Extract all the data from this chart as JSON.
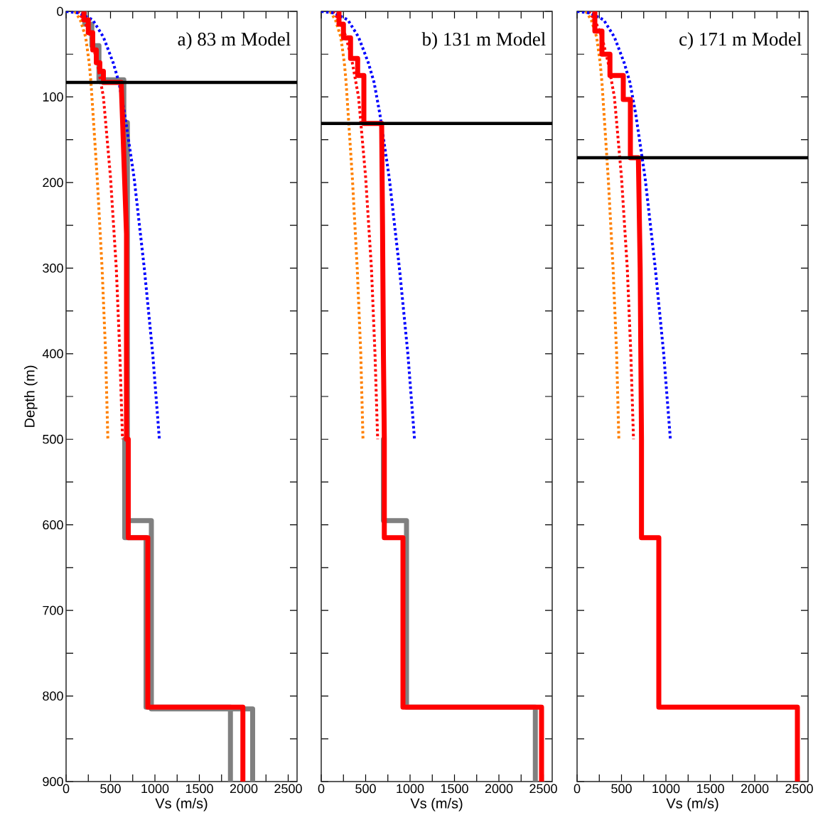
{
  "chart_data": [
    {
      "type": "line",
      "title": "a) 83 m Model",
      "xlabel": "Vs (m/s)",
      "ylabel": "Depth (m)",
      "xlim": [
        0,
        2600
      ],
      "ylim": [
        900,
        0
      ],
      "xticks": [
        0,
        {
          "value": 250,
          "label": null
        },
        500,
        {
          "value": 750,
          "label": null
        },
        1000,
        {
          "value": 1250,
          "label": null
        },
        1500,
        {
          "value": 1750,
          "label": null
        },
        2000,
        {
          "value": 2250,
          "label": null
        },
        2500
      ],
      "yticks": [
        0,
        {
          "value": 50,
          "label": null
        },
        100,
        {
          "value": 150,
          "label": null
        },
        200,
        {
          "value": 250,
          "label": null
        },
        300,
        {
          "value": 350,
          "label": null
        },
        400,
        {
          "value": 450,
          "label": null
        },
        500,
        {
          "value": 550,
          "label": null
        },
        600,
        {
          "value": 650,
          "label": null
        },
        700,
        {
          "value": 750,
          "label": null
        },
        800,
        {
          "value": 850,
          "label": null
        },
        900
      ],
      "series": [
        {
          "color": "#808080",
          "line_style": "solid",
          "x": [
            210,
            210,
            290,
            290,
            370,
            370,
            650,
            650,
            690,
            690,
            960,
            960,
            2100,
            2100
          ],
          "values": [
            0,
            15,
            15,
            40,
            40,
            80,
            80,
            130,
            130,
            595,
            595,
            815,
            815,
            900
          ]
        },
        {
          "color": "#808080",
          "line_style": "solid",
          "x": [
            660,
            660,
            900,
            900,
            1850,
            1850
          ],
          "values": [
            500,
            615,
            615,
            813,
            813,
            900
          ]
        },
        {
          "color": "#ff8000",
          "line_style": "dotted",
          "x": [
            100,
            160,
            220,
            260,
            280,
            350,
            405,
            445,
            470
          ],
          "values": [
            0,
            10,
            30,
            60,
            83,
            194,
            300,
            400,
            500
          ]
        },
        {
          "color": "#ff0000",
          "line_style": "dotted",
          "x": [
            130,
            200,
            280,
            350,
            420,
            500,
            565,
            605,
            635
          ],
          "values": [
            0,
            10,
            30,
            60,
            100,
            194,
            300,
            400,
            500
          ]
        },
        {
          "color": "#0000ff",
          "line_style": "dotted",
          "x": [
            0,
            150,
            300,
            420,
            530,
            595,
            660,
            765,
            880,
            975,
            1050
          ],
          "values": [
            0,
            2,
            10,
            30,
            60,
            83,
            120,
            194,
            300,
            400,
            500
          ]
        },
        {
          "color": "#ff0000",
          "line_style": "solid",
          "x": [
            200,
            200,
            250,
            250,
            300,
            300,
            340,
            340,
            380,
            380,
            420,
            420,
            620,
            640,
            660,
            680,
            680,
            700,
            700,
            920,
            920,
            1990,
            1990
          ],
          "values": [
            0,
            10,
            10,
            25,
            25,
            45,
            45,
            60,
            60,
            70,
            70,
            83,
            83,
            140,
            200,
            260,
            500,
            500,
            615,
            615,
            813,
            813,
            900
          ]
        }
      ],
      "ref_lines": [
        {
          "axis": "y",
          "value": 83,
          "color": "#000000"
        }
      ]
    },
    {
      "type": "line",
      "title": "b) 131 m Model",
      "xlabel": "Vs (m/s)",
      "xlim": [
        0,
        2600
      ],
      "ylim": [
        900,
        0
      ],
      "tick_labels": "x",
      "xticks": [
        0,
        {
          "value": 250,
          "label": null
        },
        500,
        {
          "value": 750,
          "label": null
        },
        1000,
        {
          "value": 1250,
          "label": null
        },
        1500,
        {
          "value": 1750,
          "label": null
        },
        2000,
        {
          "value": 2250,
          "label": null
        },
        2500
      ],
      "yticks": [
        0,
        {
          "value": 50,
          "label": null
        },
        100,
        {
          "value": 150,
          "label": null
        },
        200,
        {
          "value": 250,
          "label": null
        },
        300,
        {
          "value": 350,
          "label": null
        },
        400,
        {
          "value": 450,
          "label": null
        },
        500,
        {
          "value": 550,
          "label": null
        },
        600,
        {
          "value": 650,
          "label": null
        },
        700,
        {
          "value": 750,
          "label": null
        },
        800,
        {
          "value": 850,
          "label": null
        },
        900
      ],
      "series": [
        {
          "color": "#808080",
          "line_style": "solid",
          "x": [
            700,
            700,
            960,
            960,
            2410,
            2410
          ],
          "values": [
            500,
            595,
            595,
            813,
            813,
            900
          ]
        },
        {
          "color": "#ff8000",
          "line_style": "dotted",
          "x": [
            100,
            160,
            220,
            260,
            280,
            350,
            405,
            445,
            470
          ],
          "values": [
            0,
            10,
            30,
            60,
            83,
            194,
            300,
            400,
            500
          ]
        },
        {
          "color": "#ff0000",
          "line_style": "dotted",
          "x": [
            130,
            200,
            280,
            350,
            420,
            500,
            565,
            605,
            635
          ],
          "values": [
            0,
            10,
            30,
            60,
            100,
            194,
            300,
            400,
            500
          ]
        },
        {
          "color": "#0000ff",
          "line_style": "dotted",
          "x": [
            0,
            150,
            300,
            420,
            530,
            595,
            660,
            765,
            880,
            975,
            1050
          ],
          "values": [
            0,
            2,
            10,
            30,
            60,
            83,
            120,
            194,
            300,
            400,
            500
          ]
        },
        {
          "color": "#ff0000",
          "line_style": "solid",
          "x": [
            200,
            200,
            250,
            250,
            330,
            330,
            410,
            410,
            480,
            480,
            680,
            690,
            700,
            710,
            710,
            920,
            920,
            2480,
            2480
          ],
          "values": [
            0,
            15,
            15,
            31,
            31,
            55,
            55,
            75,
            75,
            131,
            131,
            250,
            400,
            500,
            615,
            615,
            813,
            813,
            900
          ]
        }
      ],
      "ref_lines": [
        {
          "axis": "y",
          "value": 131,
          "color": "#000000"
        }
      ]
    },
    {
      "type": "line",
      "title": "c) 171 m Model",
      "xlabel": "Vs (m/s)",
      "xlim": [
        0,
        2600
      ],
      "ylim": [
        900,
        0
      ],
      "tick_labels": "x",
      "xticks": [
        0,
        {
          "value": 250,
          "label": null
        },
        500,
        {
          "value": 750,
          "label": null
        },
        1000,
        {
          "value": 1250,
          "label": null
        },
        1500,
        {
          "value": 1750,
          "label": null
        },
        2000,
        {
          "value": 2250,
          "label": null
        },
        2500
      ],
      "yticks": [
        0,
        {
          "value": 50,
          "label": null
        },
        100,
        {
          "value": 150,
          "label": null
        },
        200,
        {
          "value": 250,
          "label": null
        },
        300,
        {
          "value": 350,
          "label": null
        },
        400,
        {
          "value": 450,
          "label": null
        },
        500,
        {
          "value": 550,
          "label": null
        },
        600,
        {
          "value": 650,
          "label": null
        },
        700,
        {
          "value": 750,
          "label": null
        },
        800,
        {
          "value": 850,
          "label": null
        },
        900
      ],
      "series": [
        {
          "color": "#ff8000",
          "line_style": "dotted",
          "x": [
            100,
            160,
            220,
            260,
            280,
            350,
            405,
            445,
            470
          ],
          "values": [
            0,
            10,
            30,
            60,
            83,
            194,
            300,
            400,
            500
          ]
        },
        {
          "color": "#ff0000",
          "line_style": "dotted",
          "x": [
            130,
            200,
            280,
            350,
            420,
            500,
            565,
            605,
            635
          ],
          "values": [
            0,
            10,
            30,
            60,
            100,
            194,
            300,
            400,
            500
          ]
        },
        {
          "color": "#0000ff",
          "line_style": "dotted",
          "x": [
            0,
            150,
            300,
            420,
            530,
            595,
            660,
            765,
            880,
            975,
            1050
          ],
          "values": [
            0,
            2,
            10,
            30,
            60,
            83,
            120,
            194,
            300,
            400,
            500
          ]
        },
        {
          "color": "#ff0000",
          "line_style": "solid",
          "x": [
            200,
            200,
            280,
            280,
            370,
            370,
            520,
            520,
            600,
            600,
            690,
            710,
            725,
            725,
            920,
            920,
            2480,
            2480
          ],
          "values": [
            0,
            23,
            23,
            50,
            50,
            75,
            75,
            103,
            103,
            171,
            171,
            300,
            500,
            615,
            615,
            813,
            813,
            900
          ]
        }
      ],
      "ref_lines": [
        {
          "axis": "y",
          "value": 171,
          "color": "#000000"
        }
      ]
    }
  ]
}
